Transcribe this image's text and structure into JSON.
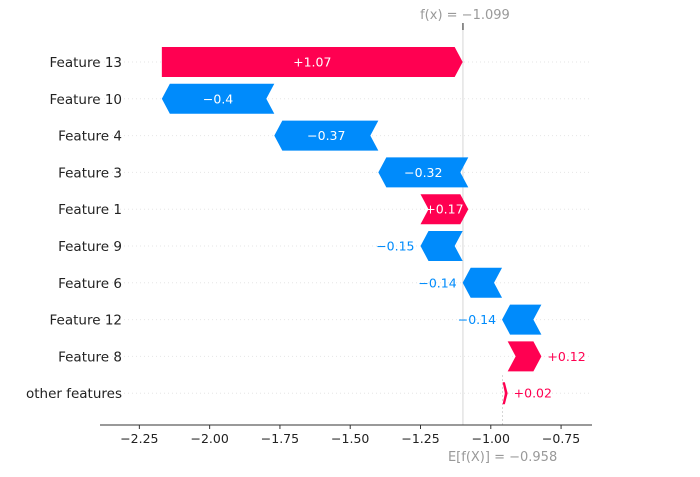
{
  "chart_data": {
    "type": "waterfall",
    "title": "",
    "xlabel": "",
    "ylabel": "",
    "xlim": [
      -2.39,
      -0.64
    ],
    "x_ticks": [
      -2.25,
      -2.0,
      -1.75,
      -1.5,
      -1.25,
      -1.0,
      -0.75
    ],
    "x_tick_labels": [
      "−2.25",
      "−2.00",
      "−1.75",
      "−1.50",
      "−1.25",
      "−1.00",
      "−0.75"
    ],
    "base_value": -0.958,
    "base_label": "E[f(X)] = −0.958",
    "output_value": -1.099,
    "output_label": "f(x) = −1.099",
    "features": [
      {
        "name": "Feature 13",
        "value": 1.07,
        "label": "+1.07",
        "start": -2.17,
        "end": -1.1
      },
      {
        "name": "Feature 10",
        "value": -0.4,
        "label": "−0.4",
        "start": -1.77,
        "end": -2.17
      },
      {
        "name": "Feature 4",
        "value": -0.37,
        "label": "−0.37",
        "start": -1.4,
        "end": -1.77
      },
      {
        "name": "Feature 3",
        "value": -0.32,
        "label": "−0.32",
        "start": -1.08,
        "end": -1.4
      },
      {
        "name": "Feature 1",
        "value": 0.17,
        "label": "+0.17",
        "start": -1.25,
        "end": -1.08
      },
      {
        "name": "Feature 9",
        "value": -0.15,
        "label": "−0.15",
        "start": -1.1,
        "end": -1.25
      },
      {
        "name": "Feature 6",
        "value": -0.14,
        "label": "−0.14",
        "start": -0.96,
        "end": -1.1
      },
      {
        "name": "Feature 12",
        "value": -0.14,
        "label": "−0.14",
        "start": -0.82,
        "end": -0.96
      },
      {
        "name": "Feature 8",
        "value": 0.12,
        "label": "+0.12",
        "start": -0.94,
        "end": -0.82
      },
      {
        "name": "other features",
        "value": 0.02,
        "label": "+0.02",
        "start": -0.958,
        "end": -0.94
      }
    ],
    "colors": {
      "positive": "#ff0051",
      "negative": "#008bfb",
      "axis": "#333333",
      "muted": "#999999",
      "grid": "#cccccc"
    }
  }
}
